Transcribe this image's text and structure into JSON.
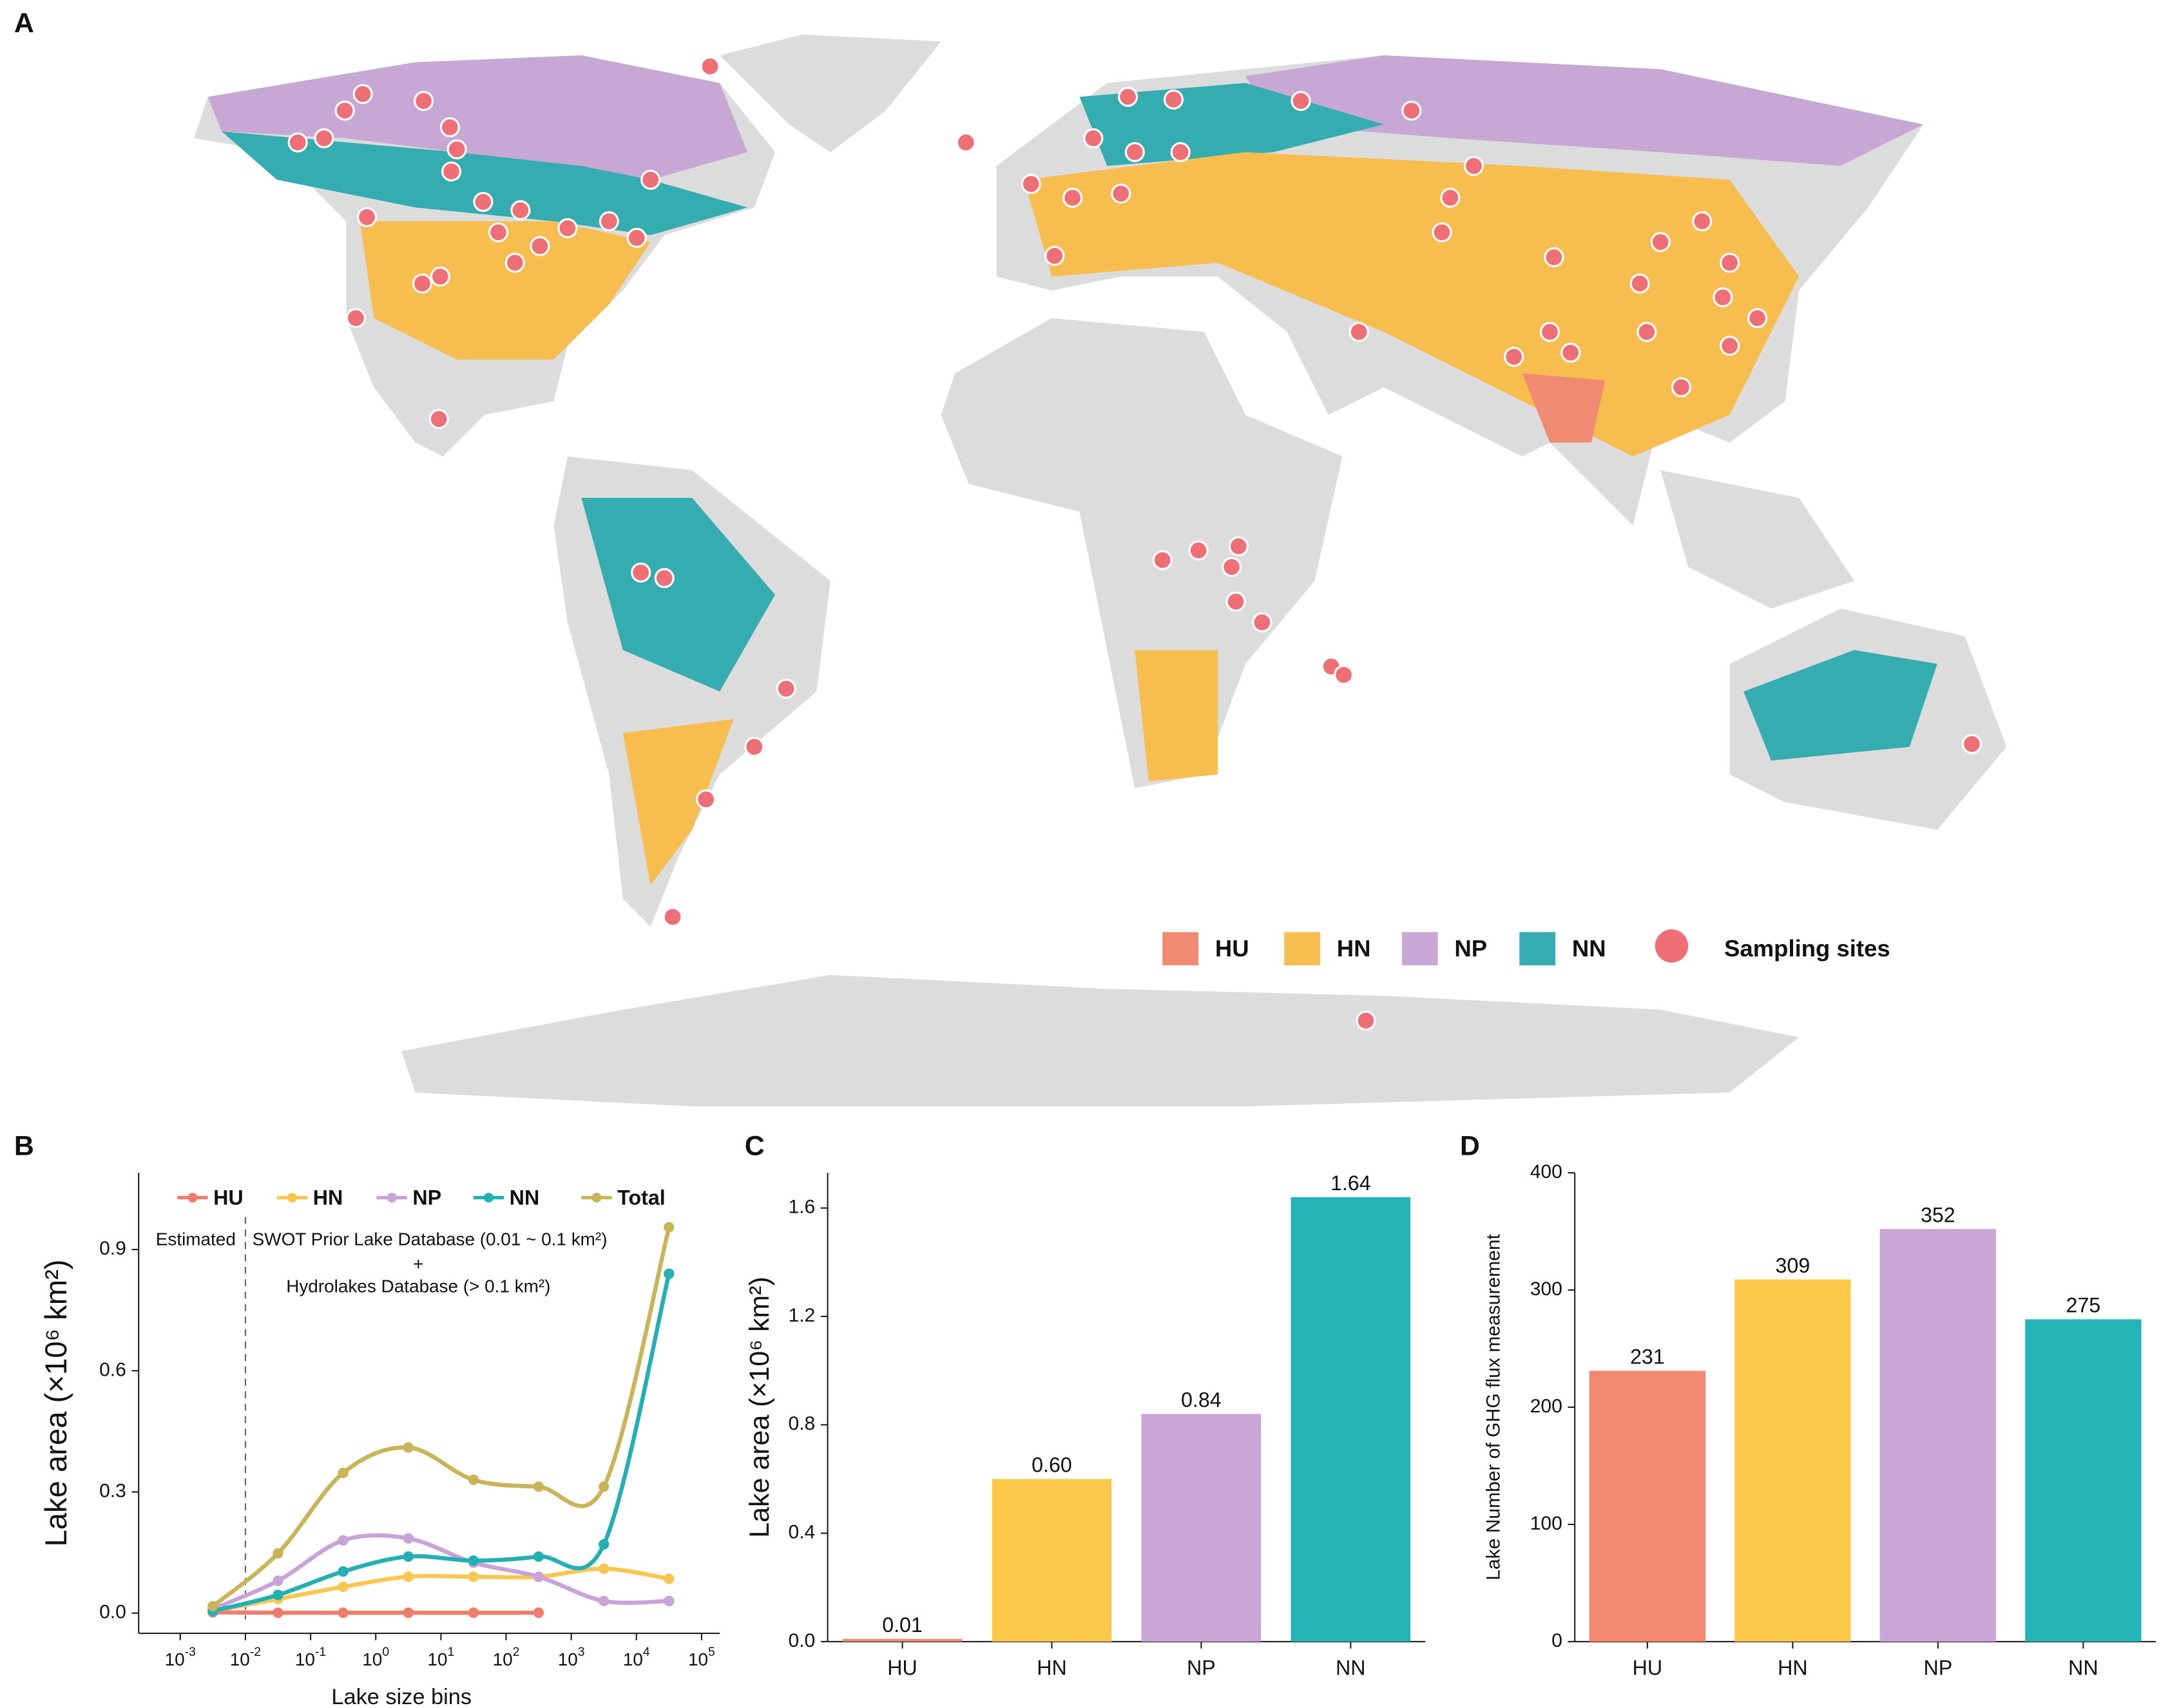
{
  "chart_data": [
    {
      "type": "map",
      "panel": "A",
      "legend": [
        {
          "name": "HU",
          "color": "#f08a73"
        },
        {
          "name": "HN",
          "color": "#f7bd4f"
        },
        {
          "name": "NP",
          "color": "#c7a8d4"
        },
        {
          "name": "NN",
          "color": "#35acb0"
        }
      ],
      "sites_label": "Sampling sites",
      "sites_color": "#ee6f76"
    },
    {
      "type": "line",
      "panel": "B",
      "xlog": true,
      "x": [
        0.00316,
        0.0316,
        0.316,
        3.16,
        31.6,
        316,
        3162,
        31623
      ],
      "xlim": [
        0.00023,
        190000
      ],
      "xticks": [
        {
          "value": 0.001,
          "label": "10",
          "exponent": "-3"
        },
        {
          "value": 0.01,
          "label": "10",
          "exponent": "-2"
        },
        {
          "value": 0.1,
          "label": "10",
          "exponent": "-1"
        },
        {
          "value": 1,
          "label": "10",
          "exponent": "0"
        },
        {
          "value": 10,
          "label": "10",
          "exponent": "1"
        },
        {
          "value": 100,
          "label": "10",
          "exponent": "2"
        },
        {
          "value": 1000,
          "label": "10",
          "exponent": "3"
        },
        {
          "value": 10000,
          "label": "10",
          "exponent": "4"
        },
        {
          "value": 100000,
          "label": "10",
          "exponent": "5"
        }
      ],
      "ylim": [
        -0.05,
        1.09
      ],
      "yticks": [
        {
          "value": 0,
          "label": "0.0"
        },
        0.3,
        0.6,
        0.9
      ],
      "xlabel": "Lake size bins",
      "ylabel": "Lake area (×10⁶ km²)",
      "divider": 0.01,
      "annotations": [
        "Estimated",
        "SWOT Prior Lake Database (0.01 ~ 0.1 km²)",
        "+",
        "Hydrolakes Database (> 0.1 km²)"
      ],
      "legend": "top",
      "series": [
        {
          "name": "HU",
          "color": "#f07c6c",
          "values": [
            0.002,
            0.001,
            0.001,
            0.001,
            0.001,
            0.001,
            null,
            null
          ]
        },
        {
          "name": "HN",
          "color": "#f9c74f",
          "values": [
            0.005,
            0.035,
            0.065,
            0.09,
            0.09,
            0.09,
            0.11,
            0.085
          ]
        },
        {
          "name": "NP",
          "color": "#c8a2d8",
          "values": [
            0.01,
            0.08,
            0.18,
            0.185,
            0.125,
            0.09,
            0.03,
            0.03
          ]
        },
        {
          "name": "NN",
          "color": "#22b0b5",
          "values": [
            0.005,
            0.045,
            0.103,
            0.14,
            0.13,
            0.14,
            0.17,
            0.84
          ]
        },
        {
          "name": "Total",
          "color": "#c9b458",
          "values": [
            0.017,
            0.148,
            0.347,
            0.41,
            0.33,
            0.313,
            0.313,
            0.955
          ]
        }
      ]
    },
    {
      "type": "bar",
      "panel": "C",
      "categories": [
        "HU",
        "HN",
        "NP",
        "NN"
      ],
      "values": [
        0.01,
        0.6,
        0.84,
        1.64
      ],
      "value_labels": [
        "0.01",
        "0.60",
        "0.84",
        "1.64"
      ],
      "colors": [
        "#f4886e",
        "#fcc84a",
        "#c9a6d6",
        "#24b3b7"
      ],
      "ylim": [
        0,
        1.73
      ],
      "yticks": [
        {
          "value": 0,
          "label": "0.0"
        },
        {
          "value": 0.4,
          "label": "0.4"
        },
        {
          "value": 0.8,
          "label": "0.8"
        },
        {
          "value": 1.2,
          "label": "1.2"
        },
        {
          "value": 1.6,
          "label": "1.6"
        }
      ],
      "ylabel": "Lake area (×10⁶ km²)"
    },
    {
      "type": "bar",
      "panel": "D",
      "categories": [
        "HU",
        "HN",
        "NP",
        "NN"
      ],
      "values": [
        231,
        309,
        352,
        275
      ],
      "colors": [
        "#f4886e",
        "#fcc84a",
        "#c9a6d6",
        "#24b3b7"
      ],
      "ylim": [
        0,
        400
      ],
      "yticks": [
        0,
        100,
        200,
        300,
        400
      ],
      "ylabel": "Lake Number  of GHG flux measurement"
    }
  ]
}
